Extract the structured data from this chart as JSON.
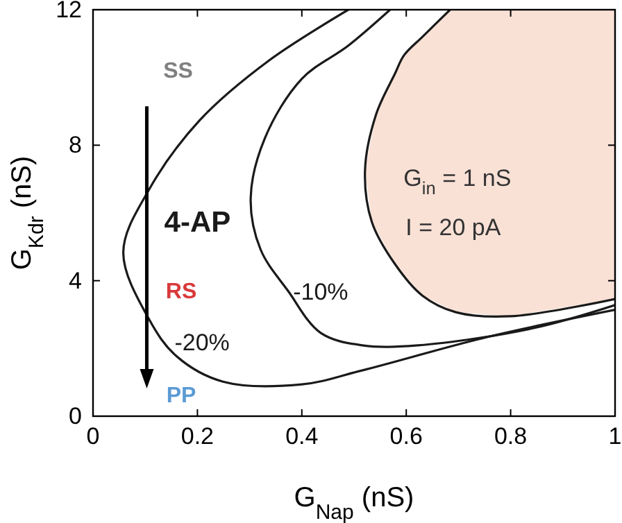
{
  "chart_data": {
    "type": "line",
    "xlabel": "G$_{Nap}$ (nS)",
    "ylabel": "G$_{Kdr}$ (nS)",
    "xlim": [
      0,
      1
    ],
    "ylim": [
      0,
      12
    ],
    "xticks": [
      0,
      0.2,
      0.4,
      0.6,
      0.8,
      1
    ],
    "yticks": [
      0,
      4,
      8,
      12
    ],
    "marker": "none",
    "line_style": "solid",
    "series": [
      {
        "color": "#1a1a1a",
        "x": [
          0.684,
          0.631,
          0.596,
          0.578,
          0.542,
          0.521,
          0.534,
          0.578,
          0.631,
          0.695,
          0.8,
          1
        ],
        "values": [
          12,
          11.2,
          10.66,
          10.1,
          8.9,
          7.25,
          5.74,
          4.5,
          3.56,
          3.07,
          2.95,
          3.46
        ]
      },
      {
        "color": "#1a1a1a",
        "x": [
          0.569,
          0.489,
          0.4,
          0.329,
          0.302,
          0.321,
          0.374,
          0.436,
          0.516,
          0.622,
          0.844,
          1
        ],
        "values": [
          12,
          10.94,
          9.96,
          8.2,
          6.43,
          4.92,
          3.69,
          2.46,
          2.09,
          2.09,
          2.6,
          3.28
        ]
      },
      {
        "color": "#1a1a1a",
        "x": [
          0.489,
          0.337,
          0.204,
          0.107,
          0.058,
          0.107,
          0.16,
          0.249,
          0.4,
          0.515,
          0.756,
          1
        ],
        "values": [
          12,
          10.5,
          8.73,
          6.68,
          4.84,
          2.87,
          1.77,
          1.02,
          0.94,
          1.35,
          2.34,
          3.14
        ]
      }
    ],
    "annotations": [
      "SS",
      "4-AP",
      "RS",
      "-20%",
      "PP",
      "-10%",
      "G$_{in}$ = 1 nS",
      "I = 20 pA"
    ]
  }
}
